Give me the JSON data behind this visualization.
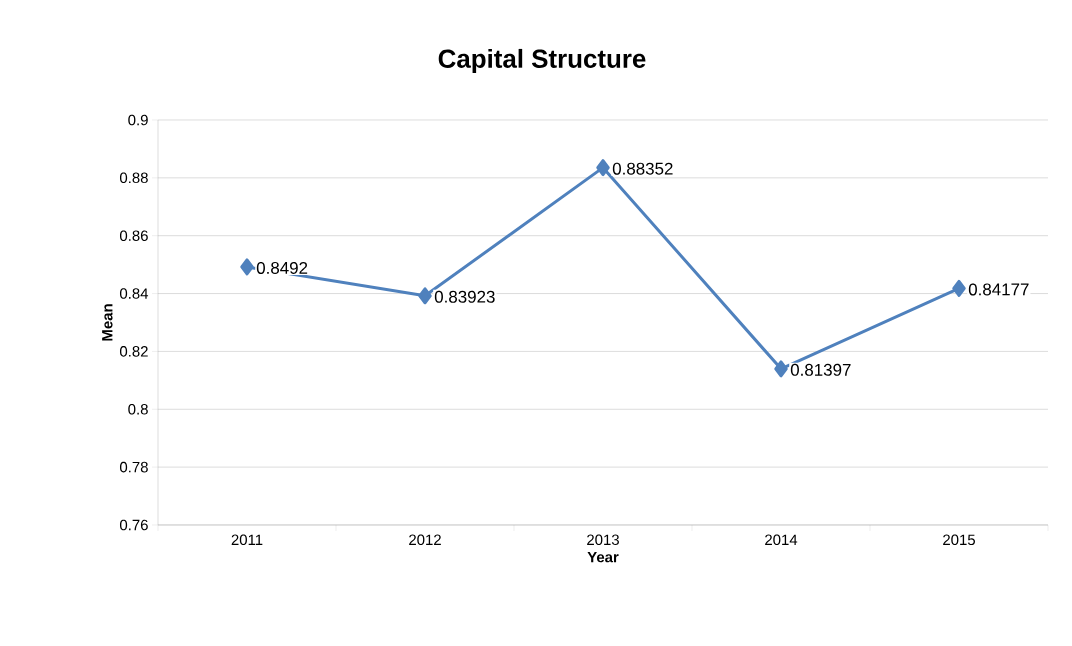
{
  "chart_data": {
    "type": "line",
    "title": "Capital Structure",
    "xlabel": "Year",
    "ylabel": "Mean",
    "categories": [
      "2011",
      "2012",
      "2013",
      "2014",
      "2015"
    ],
    "values": [
      0.8492,
      0.83923,
      0.88352,
      0.81397,
      0.84177
    ],
    "color": "#4f81bd",
    "marker": "diamond",
    "line_style": "solid",
    "ylim": [
      0.76,
      0.9
    ],
    "yticks": [
      0.76,
      0.78,
      0.8,
      0.82,
      0.84,
      0.86,
      0.88,
      0.9
    ],
    "grid": "y",
    "data_labels": true
  }
}
